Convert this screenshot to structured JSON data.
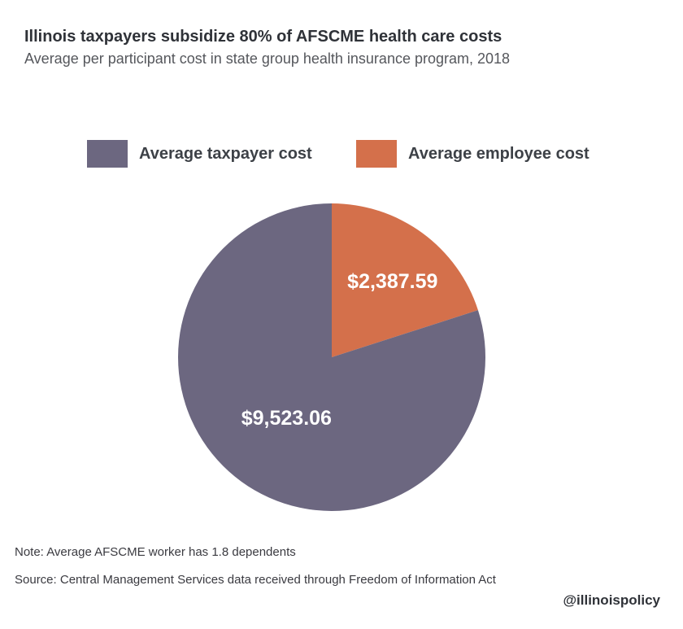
{
  "header": {
    "title": "Illinois taxpayers subsidize 80% of AFSCME health care costs",
    "subtitle": "Average per participant cost in state group health insurance program, 2018"
  },
  "legend": [
    {
      "label": "Average taxpayer cost",
      "color": "#6c6780"
    },
    {
      "label": "Average employee cost",
      "color": "#d4704b"
    }
  ],
  "chart_data": {
    "type": "pie",
    "title": "Illinois taxpayers subsidize 80% of AFSCME health care costs",
    "subtitle": "Average per participant cost in state group health insurance program, 2018",
    "legend_position": "top",
    "slices": [
      {
        "label": "Average employee cost",
        "value": 2387.59,
        "display": "$2,387.59",
        "color": "#d4704b"
      },
      {
        "label": "Average taxpayer cost",
        "value": 9523.06,
        "display": "$9,523.06",
        "color": "#6c6780"
      }
    ]
  },
  "footer": {
    "note": "Note: Average AFSCME worker has 1.8 dependents",
    "source": "Source:  Central Management Services data received through Freedom of Information Act",
    "handle": "@illinoispolicy"
  }
}
